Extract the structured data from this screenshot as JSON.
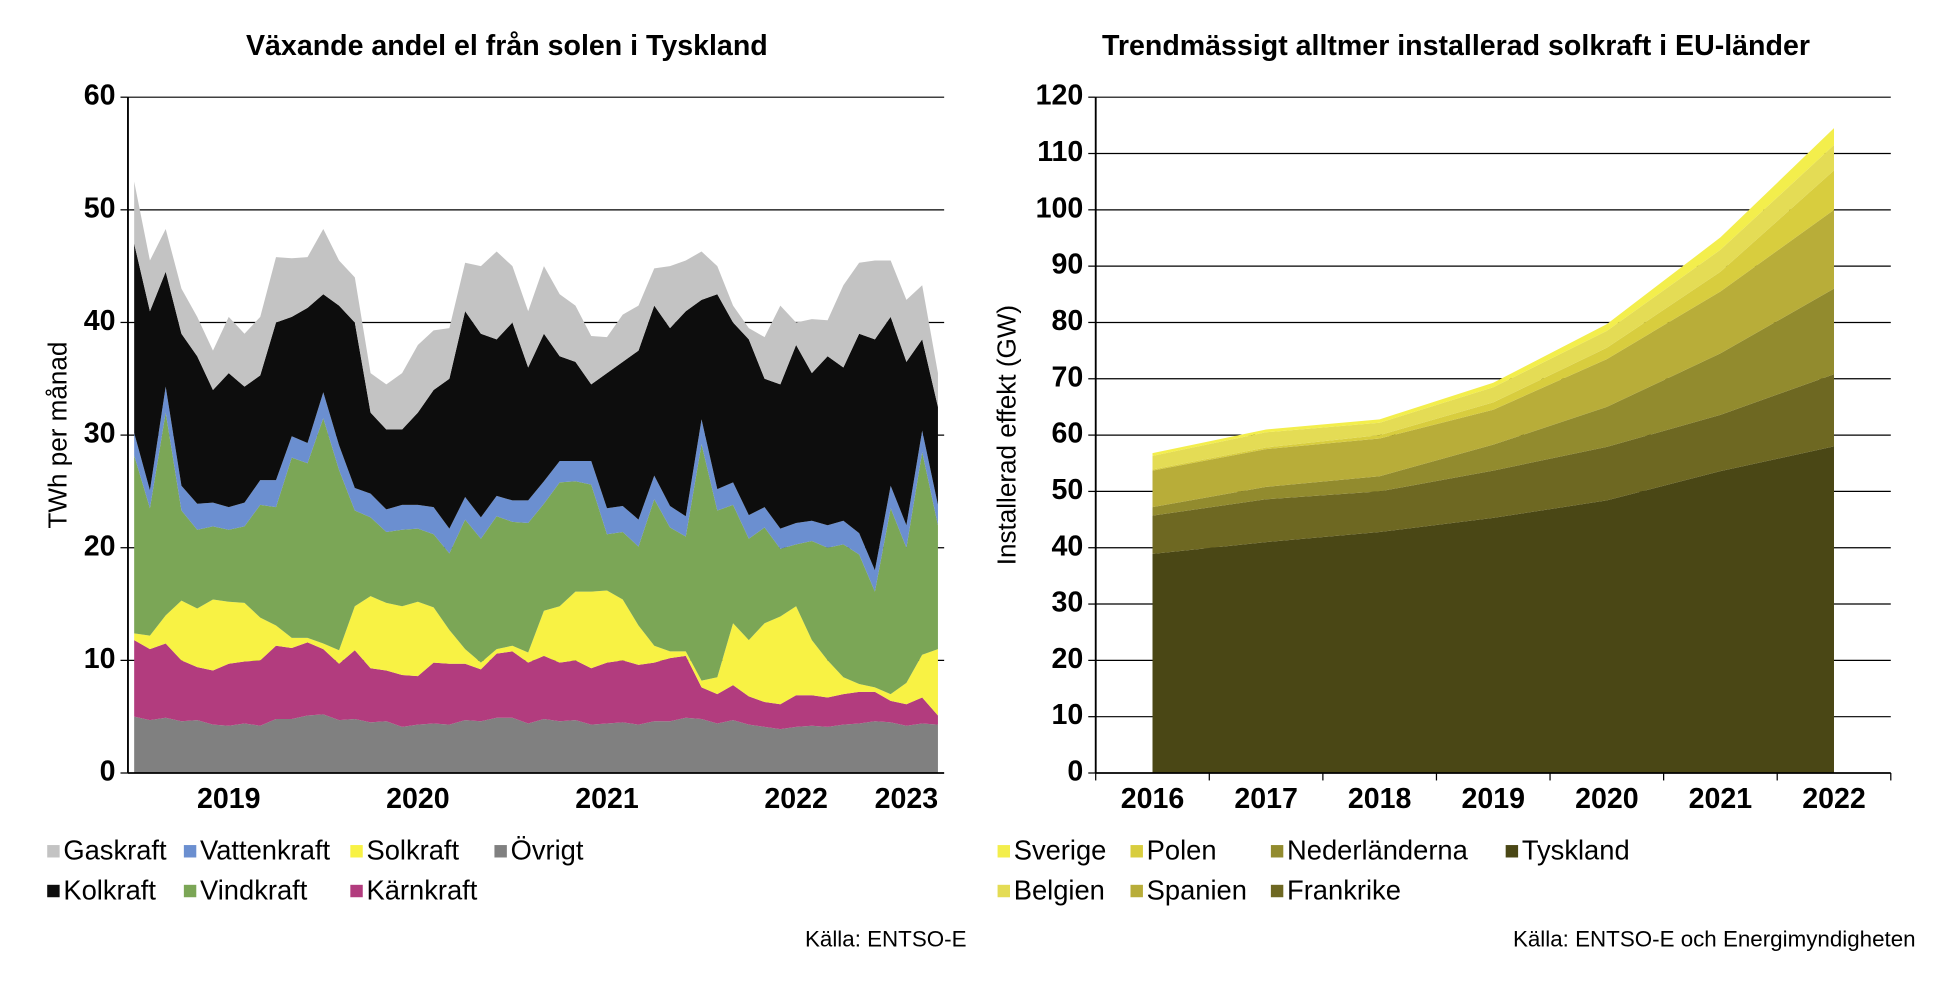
{
  "chart_data": [
    {
      "type": "area",
      "stacked": true,
      "title": "Växande andel el från solen i Tyskland",
      "y_label": "TWh per månad",
      "source": "Källa: ENTSO-E",
      "categories": [
        null,
        null,
        null,
        null,
        null,
        null,
        "2019",
        null,
        null,
        null,
        null,
        null,
        null,
        null,
        null,
        null,
        null,
        null,
        "2020",
        null,
        null,
        null,
        null,
        null,
        null,
        null,
        null,
        null,
        null,
        null,
        "2021",
        null,
        null,
        null,
        null,
        null,
        null,
        null,
        null,
        null,
        null,
        null,
        "2022",
        null,
        null,
        null,
        null,
        null,
        null,
        "2023",
        null,
        null
      ],
      "ylim": [
        0,
        60
      ],
      "yticks": [
        0,
        10,
        20,
        30,
        40,
        50,
        60
      ],
      "grid": true,
      "series": [
        {
          "name": "Gaskraft",
          "color": "#c3c3c3",
          "values": [
            5.5,
            4.5,
            3.8,
            4,
            3.5,
            3.5,
            5,
            4.7,
            5.2,
            5.8,
            5.2,
            4.5,
            5.8,
            4,
            4,
            3.5,
            4,
            5,
            6,
            5.3,
            4.5,
            4.3,
            6,
            7.8,
            5,
            5,
            6,
            5.5,
            5,
            4.3,
            3.2,
            4.2,
            4,
            3.3,
            5.5,
            4.5,
            4.3,
            2.5,
            1.5,
            1,
            3.7,
            7,
            2,
            4.8,
            3.2,
            7.3,
            6.3,
            7,
            5,
            5.5,
            4.8,
            3
          ]
        },
        {
          "name": "Kolkraft",
          "color": "#0d0d0d",
          "values": [
            16.8,
            15.9,
            10.2,
            13.5,
            13.1,
            10,
            11.9,
            10.3,
            9.3,
            14,
            10.6,
            12,
            8.7,
            12.4,
            14.7,
            7.2,
            7.1,
            6.7,
            8.2,
            10.4,
            13.3,
            16.5,
            16.3,
            13.9,
            15.8,
            11.8,
            13.1,
            9.3,
            8.8,
            6.8,
            12,
            12.8,
            15,
            15.1,
            15.8,
            18.2,
            10.6,
            17.3,
            14.2,
            15.6,
            11.4,
            12.8,
            15.8,
            13.1,
            15,
            13.6,
            17.7,
            20.5,
            15,
            14.5,
            8.1,
            8.7
          ]
        },
        {
          "name": "Vattenkraft",
          "color": "#6b8fd0",
          "values": [
            2,
            1.6,
            2.3,
            2.2,
            2.3,
            2.1,
            2,
            2.1,
            2.2,
            2.4,
            1.9,
            1.8,
            2.3,
            2.2,
            2,
            2.1,
            2,
            2.2,
            2.1,
            2.4,
            2.2,
            2,
            1.9,
            1.8,
            1.9,
            2,
            2,
            1.9,
            1.8,
            2.1,
            2.3,
            2.3,
            2.4,
            2.1,
            1.9,
            1.8,
            2.2,
            1.9,
            2,
            2.1,
            1.8,
            1.8,
            1.9,
            1.8,
            2,
            2.1,
            1.9,
            1.9,
            2,
            2,
            1.9,
            1.8
          ]
        },
        {
          "name": "Vindkraft",
          "color": "#7ba656",
          "values": [
            15.8,
            11.3,
            18,
            8,
            7,
            6.5,
            6.4,
            6.8,
            10,
            10.5,
            16,
            15.5,
            20,
            16,
            8.5,
            7,
            6.3,
            6.8,
            6.5,
            6.5,
            6.8,
            11.5,
            11,
            11.8,
            11,
            11.5,
            9.5,
            11,
            9.8,
            9.5,
            5,
            6,
            7,
            13,
            11,
            10.2,
            21,
            14.8,
            10.5,
            9,
            8.5,
            6,
            5.5,
            8.8,
            10,
            11.8,
            11.5,
            8.5,
            16.5,
            12,
            18,
            11
          ]
        },
        {
          "name": "Solkraft",
          "color": "#f8f244",
          "values": [
            0.6,
            1.2,
            2.5,
            5.3,
            5.2,
            6.3,
            5.5,
            5.2,
            3.8,
            1.8,
            0.9,
            0.4,
            0.5,
            1.2,
            3.9,
            6.4,
            6,
            6.1,
            6.6,
            4.9,
            3,
            1.3,
            0.6,
            0.4,
            0.5,
            0.9,
            4,
            5,
            6.1,
            6.8,
            6.4,
            5.4,
            3.5,
            1.5,
            0.6,
            0.4,
            0.6,
            1.5,
            5.5,
            5,
            7,
            7.8,
            7.9,
            4.9,
            3.3,
            1.5,
            0.7,
            0.4,
            0.6,
            1.9,
            3.8,
            5.9
          ]
        },
        {
          "name": "Kärnkraft",
          "color": "#b23c7e",
          "values": [
            6.8,
            6.3,
            6.6,
            5.4,
            4.7,
            4.8,
            5.5,
            5.5,
            5.8,
            6.5,
            6.3,
            6.5,
            5.8,
            5,
            6.1,
            4.8,
            4.5,
            4.6,
            4.3,
            5.4,
            5.4,
            5,
            4.6,
            5.7,
            5.9,
            5.4,
            5.6,
            5.2,
            5.3,
            5,
            5.4,
            5.5,
            5.3,
            5.2,
            5.6,
            5.5,
            2.8,
            2.6,
            3.1,
            2.5,
            2.2,
            2.2,
            2.8,
            2.7,
            2.6,
            2.7,
            2.8,
            2.6,
            1.9,
            1.9,
            2.3,
            0.8
          ]
        },
        {
          "name": "Övrigt",
          "color": "#808080",
          "values": [
            5,
            4.7,
            4.9,
            4.6,
            4.7,
            4.3,
            4.2,
            4.4,
            4.2,
            4.8,
            4.8,
            5.1,
            5.2,
            4.7,
            4.8,
            4.5,
            4.6,
            4.1,
            4.3,
            4.4,
            4.3,
            4.7,
            4.6,
            4.9,
            4.9,
            4.4,
            4.8,
            4.6,
            4.7,
            4.3,
            4.4,
            4.5,
            4.3,
            4.6,
            4.6,
            4.9,
            4.8,
            4.4,
            4.7,
            4.3,
            4.1,
            3.9,
            4.1,
            4.2,
            4.1,
            4.3,
            4.4,
            4.6,
            4.5,
            4.2,
            4.4,
            4.3
          ]
        }
      ]
    },
    {
      "type": "area",
      "stacked": true,
      "title": "Trendmässigt alltmer installerad solkraft i EU-länder",
      "y_label": "Installerad effekt (GW)",
      "source": "Källa: ENTSO-E och Energimyndigheten",
      "categories": [
        "2016",
        "2017",
        "2018",
        "2019",
        "2020",
        "2021",
        "2022"
      ],
      "ylim": [
        0,
        120
      ],
      "yticks": [
        0,
        10,
        20,
        30,
        40,
        50,
        60,
        70,
        80,
        90,
        100,
        110,
        120
      ],
      "grid": true,
      "series": [
        {
          "name": "Sverige",
          "color": "#f3ee4c",
          "values": [
            0.5,
            0.5,
            0.6,
            0.8,
            1.2,
            2.2,
            3
          ]
        },
        {
          "name": "Belgien",
          "color": "#e4dc55",
          "values": [
            2.4,
            2.7,
            2.2,
            2.7,
            3,
            3.9,
            4.5
          ]
        },
        {
          "name": "Polen",
          "color": "#d8cd3e",
          "values": [
            0.2,
            0.3,
            0.6,
            1.3,
            2,
            3.5,
            7
          ]
        },
        {
          "name": "Spanien",
          "color": "#b8ad39",
          "values": [
            6.5,
            6.7,
            6.7,
            6.2,
            8.5,
            11,
            14
          ]
        },
        {
          "name": "Nederländerna",
          "color": "#928b2e",
          "values": [
            1.5,
            2.2,
            2.7,
            4.6,
            7.1,
            10.9,
            15.2
          ]
        },
        {
          "name": "Frankrike",
          "color": "#6e6822",
          "values": [
            6.8,
            7.6,
            7.2,
            8.4,
            9.5,
            10,
            12.8
          ]
        },
        {
          "name": "Tyskland",
          "color": "#4a4715",
          "values": [
            38.9,
            41,
            42.8,
            45.3,
            48.4,
            53.6,
            58
          ]
        }
      ]
    }
  ]
}
